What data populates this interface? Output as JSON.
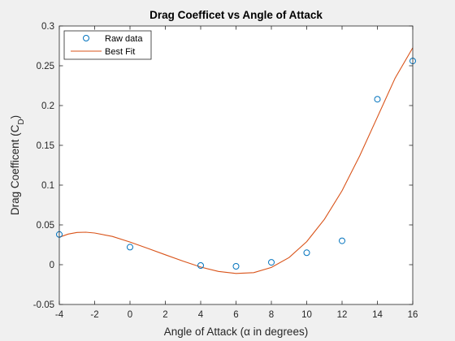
{
  "chart_data": {
    "type": "scatter",
    "title": "Drag Coefficet vs Angle of Attack",
    "xlabel_prefix": "Angle of Attack (",
    "xlabel_greek": "α",
    "xlabel_suffix": " in degrees)",
    "ylabel_main": "Drag Coefficent (C",
    "ylabel_sub": "D",
    "ylabel_close": ")",
    "xlim": [
      -4,
      16
    ],
    "ylim": [
      -0.05,
      0.3
    ],
    "xticks": [
      "-4",
      "-2",
      "0",
      "2",
      "4",
      "6",
      "8",
      "10",
      "12",
      "14",
      "16"
    ],
    "yticks": [
      "-0.05",
      "0",
      "0.05",
      "0.1",
      "0.15",
      "0.2",
      "0.25",
      "0.3"
    ],
    "series": [
      {
        "name": "Raw data",
        "kind": "markers",
        "color": "#0072BD",
        "x": [
          -4,
          0,
          4,
          6,
          8,
          10,
          12,
          14,
          16
        ],
        "y": [
          0.038,
          0.022,
          -0.001,
          -0.002,
          0.003,
          0.015,
          0.03,
          0.208,
          0.256
        ]
      },
      {
        "name": "Best Fit",
        "kind": "line",
        "color": "#D95319",
        "x": [
          -4,
          -3.5,
          -3,
          -2.5,
          -2,
          -1,
          0,
          1,
          2,
          3,
          4,
          5,
          6,
          7,
          8,
          9,
          10,
          11,
          12,
          13,
          14,
          15,
          16
        ],
        "y": [
          0.0345,
          0.0385,
          0.0405,
          0.0408,
          0.0398,
          0.0355,
          0.0285,
          0.0205,
          0.0125,
          0.0045,
          -0.003,
          -0.0085,
          -0.011,
          -0.01,
          -0.0035,
          0.009,
          0.029,
          0.057,
          0.093,
          0.137,
          0.1855,
          0.2345,
          0.2725
        ]
      }
    ],
    "legend_position": "top-left",
    "grid": false
  }
}
